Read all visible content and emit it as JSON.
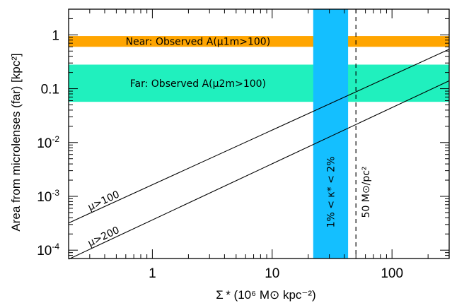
{
  "chart_data": {
    "type": "line",
    "xscale": "log",
    "yscale": "log",
    "xlim": [
      0.2,
      300
    ],
    "ylim": [
      7e-05,
      3
    ],
    "x_ticks": [
      {
        "value": 1,
        "label": "1"
      },
      {
        "value": 10,
        "label": "10"
      },
      {
        "value": 100,
        "label": "100"
      }
    ],
    "y_ticks": [
      {
        "value": 1,
        "label": "1"
      },
      {
        "value": 0.1,
        "label": "0.1"
      },
      {
        "value": 0.01,
        "label": "10",
        "exp": "-2"
      },
      {
        "value": 0.001,
        "label": "10",
        "exp": "-3"
      },
      {
        "value": 0.0001,
        "label": "10",
        "exp": "-4"
      }
    ],
    "xlabel": "Σ * (10⁶ M⊙ kpc⁻²)",
    "ylabel": "Area from microlenses (far) [kpc²]",
    "series": [
      {
        "name": "μ>100",
        "x": [
          0.2,
          300
        ],
        "y": [
          0.00032,
          0.54
        ]
      },
      {
        "name": "μ>200",
        "x": [
          0.2,
          300
        ],
        "y": [
          6.8e-05,
          0.14
        ]
      }
    ],
    "bands": [
      {
        "orientation": "horizontal",
        "from": 0.6,
        "to": 0.95,
        "color": "#FFA500",
        "label": "Near: Observed A(μ1m>100)"
      },
      {
        "orientation": "horizontal",
        "from": 0.057,
        "to": 0.28,
        "color": "#20F0BE",
        "label": "Far: Observed A(μ2m>100)"
      },
      {
        "orientation": "vertical",
        "from": 22,
        "to": 43,
        "color": "#14BFFF",
        "label": "1% < κ* < 2%"
      }
    ],
    "vlines": [
      {
        "x": 50,
        "style": "dashed",
        "label": "50 M⊙/pc²"
      }
    ],
    "series_label_positions": [
      {
        "series": "μ>100",
        "x": 0.3
      },
      {
        "series": "μ>200",
        "x": 0.3
      }
    ]
  }
}
